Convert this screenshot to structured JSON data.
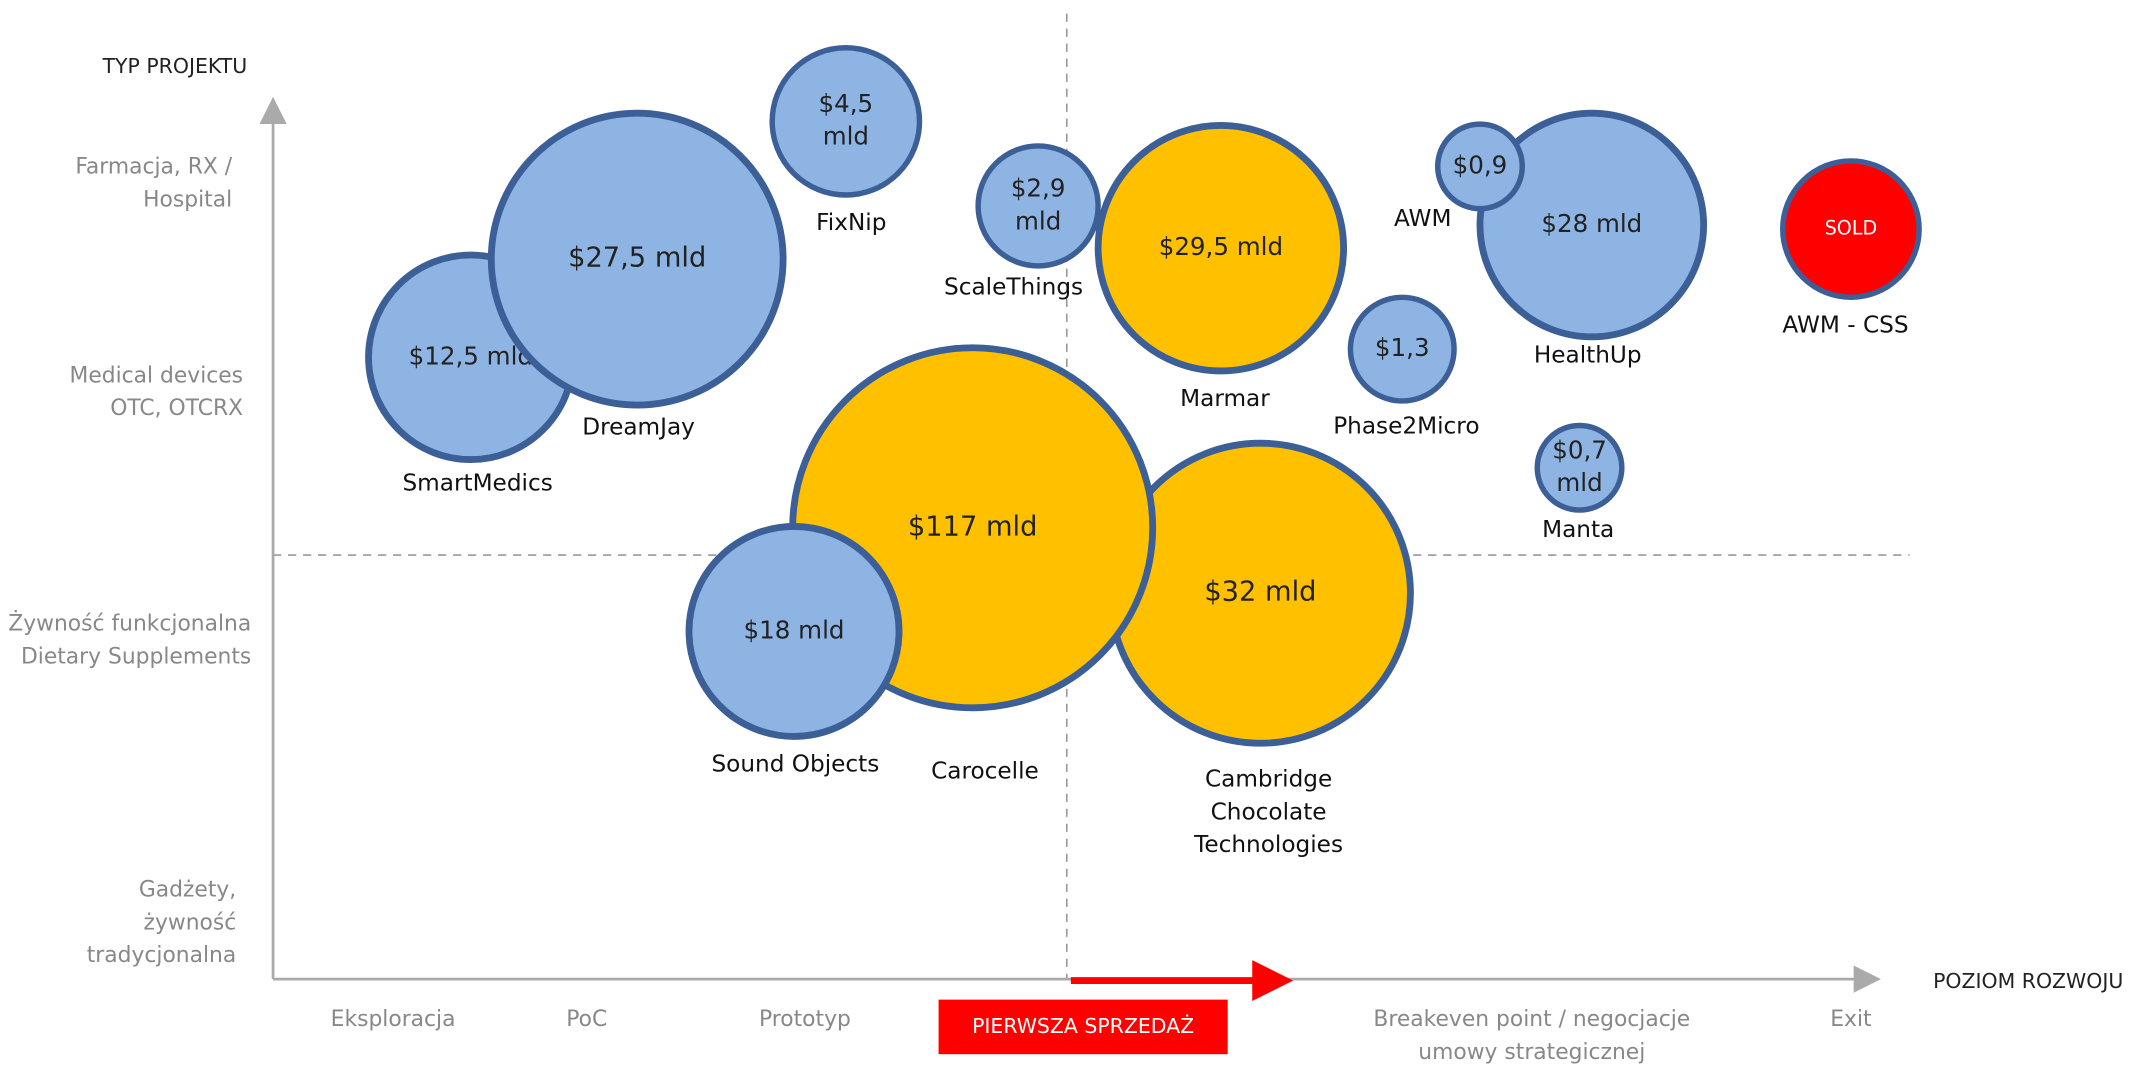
{
  "axes": {
    "y_title": "TYP PROJEKTU",
    "x_title": "POZIOM ROZWOJU",
    "y_levels": [
      [
        "Farmacja, RX /",
        "Hospital"
      ],
      [
        "Medical devices",
        "OTC, OTCRX"
      ],
      [
        "Żywność funkcjonalna",
        "Dietary Supplements"
      ],
      [
        "Gadżety,",
        "żywność",
        "tradycjonalna"
      ]
    ],
    "x_levels": [
      [
        "Eksploracja"
      ],
      [
        "PoC"
      ],
      [
        "Prototyp"
      ],
      [
        "PIERWSZA SPRZEDAŻ"
      ],
      [
        "Breakeven point / negocjacje",
        "umowy strategicznej"
      ],
      [
        "Exit"
      ]
    ]
  },
  "nodes": [
    {
      "label": [
        "$4,5",
        "mld"
      ],
      "name": [
        "FixNip"
      ]
    },
    {
      "label": [
        "$12,5 mld"
      ],
      "name": [
        "SmartMedics"
      ]
    },
    {
      "label": [
        "$27,5 mld"
      ],
      "name": [
        "DreamJay"
      ]
    },
    {
      "label": [
        "$2,9",
        "mld"
      ],
      "name": [
        "ScaleThings"
      ]
    },
    {
      "label": [
        "$29,5 mld"
      ],
      "name": [
        "Marmar"
      ]
    },
    {
      "label": [
        "$1,3"
      ],
      "name": [
        "Phase2Micro"
      ]
    },
    {
      "label": [
        "$28 mld"
      ],
      "name": [
        "HealthUp"
      ]
    },
    {
      "label": [
        "$0,9"
      ],
      "name": [
        "AWM"
      ]
    },
    {
      "label": [
        "$0,7",
        "mld"
      ],
      "name": [
        "Manta"
      ]
    },
    {
      "label": [
        "SOLD"
      ],
      "name": [
        "AWM - CSS"
      ]
    },
    {
      "label": [
        "$32 mld"
      ],
      "name": [
        "Cambridge",
        "Chocolate",
        "Technologies"
      ]
    },
    {
      "label": [
        "$117 mld"
      ],
      "name": [
        "Carocelle"
      ]
    },
    {
      "label": [
        "$18 mld"
      ],
      "name": [
        "Sound Objects"
      ]
    }
  ]
}
